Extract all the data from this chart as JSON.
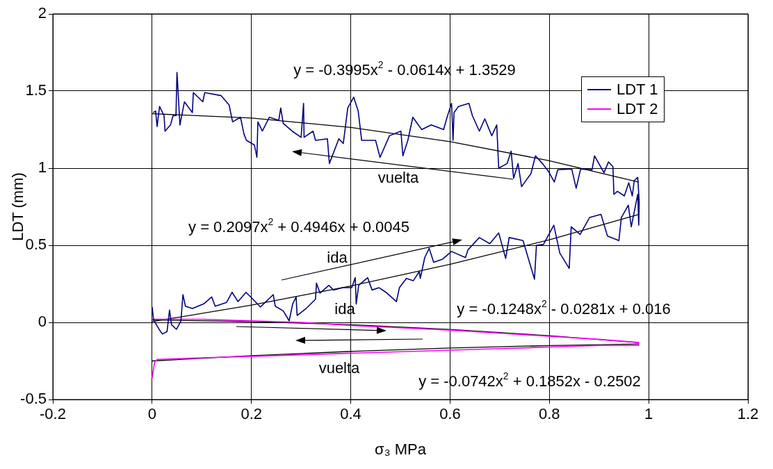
{
  "chart_data": {
    "type": "line",
    "xlabel": "σ₃ MPa",
    "ylabel": "LDT (mm)",
    "xlim": [
      -0.2,
      1.2
    ],
    "xticks": [
      -0.2,
      0,
      0.2,
      0.4,
      0.6,
      0.8,
      1,
      1.2
    ],
    "ylim": [
      -0.5,
      2
    ],
    "yticks": [
      -0.5,
      0,
      0.5,
      1,
      1.5,
      2
    ],
    "grid": true,
    "legend": "top right",
    "marker": "none",
    "line_style": "solid",
    "series": [
      {
        "name": "LDT 1",
        "color": "#000080",
        "x": [
          0,
          0.003,
          0.017,
          0.021,
          0.03,
          0.035,
          0.039,
          0.049,
          0.058,
          0.062,
          0.067,
          0.081,
          0.104,
          0.12,
          0.127,
          0.15,
          0.161,
          0.173,
          0.189,
          0.2,
          0.218,
          0.244,
          0.248,
          0.264,
          0.276,
          0.283,
          0.29,
          0.292,
          0.31,
          0.329,
          0.331,
          0.338,
          0.356,
          0.365,
          0.384,
          0.402,
          0.409,
          0.411,
          0.416,
          0.434,
          0.443,
          0.457,
          0.471,
          0.492,
          0.498,
          0.512,
          0.526,
          0.538,
          0.54,
          0.549,
          0.558,
          0.567,
          0.585,
          0.603,
          0.631,
          0.636,
          0.659,
          0.68,
          0.698,
          0.712,
          0.719,
          0.747,
          0.77,
          0.774,
          0.788,
          0.809,
          0.821,
          0.84,
          0.844,
          0.862,
          0.881,
          0.904,
          0.917,
          0.94,
          0.945,
          0.959,
          0.965,
          0.978,
          0.98,
          0.981,
          0.978,
          0.971,
          0.967,
          0.96,
          0.951,
          0.937,
          0.93,
          0.928,
          0.919,
          0.91,
          0.891,
          0.886,
          0.863,
          0.854,
          0.845,
          0.817,
          0.81,
          0.798,
          0.786,
          0.772,
          0.763,
          0.744,
          0.737,
          0.728,
          0.723,
          0.715,
          0.698,
          0.694,
          0.684,
          0.67,
          0.659,
          0.645,
          0.638,
          0.617,
          0.608,
          0.606,
          0.603,
          0.594,
          0.587,
          0.562,
          0.543,
          0.525,
          0.515,
          0.505,
          0.501,
          0.478,
          0.459,
          0.45,
          0.422,
          0.415,
          0.406,
          0.394,
          0.385,
          0.376,
          0.357,
          0.353,
          0.329,
          0.324,
          0.306,
          0.305,
          0.3,
          0.282,
          0.264,
          0.259,
          0.255,
          0.236,
          0.222,
          0.213,
          0.211,
          0.206,
          0.19,
          0.185,
          0.178,
          0.162,
          0.155,
          0.139,
          0.106,
          0.102,
          0.083,
          0.081,
          0.065,
          0.056,
          0.051,
          0.05,
          0.048,
          0.042,
          0.037,
          0.026,
          0.024,
          0.015,
          0.01,
          0.007,
          0.002
        ],
        "values": [
          0.1,
          0.015,
          -0.06,
          -0.075,
          -0.06,
          0.08,
          -0.015,
          -0.045,
          0.01,
          0.18,
          0.105,
          0.09,
          0.12,
          0.165,
          0.105,
          0.13,
          0.195,
          0.135,
          0.195,
          0.16,
          0.1,
          0.18,
          0.105,
          0.075,
          0.01,
          0.12,
          0.165,
          0.045,
          0.09,
          0.15,
          0.255,
          0.19,
          0.24,
          0.21,
          0.225,
          0.225,
          0.29,
          0.12,
          0.24,
          0.29,
          0.21,
          0.225,
          0.195,
          0.135,
          0.225,
          0.285,
          0.27,
          0.33,
          0.285,
          0.42,
          0.48,
          0.39,
          0.41,
          0.46,
          0.42,
          0.47,
          0.55,
          0.51,
          0.58,
          0.415,
          0.55,
          0.53,
          0.28,
          0.5,
          0.505,
          0.63,
          0.45,
          0.35,
          0.62,
          0.57,
          0.68,
          0.7,
          0.56,
          0.53,
          0.68,
          0.76,
          0.62,
          0.83,
          0.63,
          0.78,
          0.94,
          0.92,
          0.82,
          0.905,
          0.82,
          0.85,
          0.83,
          1.01,
          1.04,
          0.97,
          1.08,
          0.99,
          0.995,
          0.87,
          0.995,
          0.99,
          0.91,
          0.98,
          1.03,
          1.08,
          0.965,
          0.88,
          1.03,
          0.935,
          1.11,
          1.03,
          1,
          1.28,
          1.21,
          1.32,
          1.24,
          1.34,
          1.42,
          1.4,
          1.36,
          1.18,
          1.42,
          1.33,
          1.25,
          1.28,
          1.25,
          1.33,
          1.18,
          1.08,
          1.24,
          1.21,
          1.07,
          1.18,
          1.18,
          1.37,
          1.46,
          1.39,
          1.16,
          1.19,
          1.03,
          1.19,
          1.18,
          1.24,
          1.2,
          1.42,
          1.2,
          1.24,
          1.29,
          1.39,
          1.31,
          1.33,
          1.24,
          1.3,
          1.07,
          1.15,
          1.18,
          1.22,
          1.33,
          1.3,
          1.41,
          1.47,
          1.49,
          1.43,
          1.49,
          1.36,
          1.43,
          1.28,
          1.57,
          1.62,
          1.34,
          1.34,
          1.28,
          1.24,
          1.34,
          1.4,
          1.27,
          1.37,
          1.36
        ]
      },
      {
        "name": "LDT 2",
        "color": "#ff00ff",
        "x": [
          0,
          0.05,
          0.1,
          0.2,
          0.3,
          0.4,
          0.5,
          0.6,
          0.7,
          0.8,
          0.9,
          0.98,
          0.98,
          0.9,
          0.8,
          0.7,
          0.6,
          0.5,
          0.4,
          0.3,
          0.2,
          0.1,
          0.01,
          0.005,
          0
        ],
        "values": [
          0.02,
          0.02,
          0.02,
          0.01,
          0,
          -0.02,
          -0.035,
          -0.05,
          -0.07,
          -0.09,
          -0.11,
          -0.13,
          -0.15,
          -0.15,
          -0.16,
          -0.17,
          -0.18,
          -0.19,
          -0.2,
          -0.21,
          -0.22,
          -0.23,
          -0.24,
          -0.26,
          -0.36
        ]
      },
      {
        "type": "line",
        "color": "#000000",
        "x": [
          0,
          0.2,
          0.4,
          0.6,
          0.8,
          0.98
        ],
        "values": [
          1.353,
          1.325,
          1.264,
          1.172,
          1.048,
          0.909
        ]
      },
      {
        "type": "line",
        "color": "#000000",
        "x": [
          0,
          0.2,
          0.4,
          0.6,
          0.8,
          0.98
        ],
        "values": [
          0.005,
          0.112,
          0.236,
          0.377,
          0.535,
          0.7
        ]
      },
      {
        "type": "line",
        "color": "#000000",
        "x": [
          0,
          0.2,
          0.4,
          0.6,
          0.8,
          0.98
        ],
        "values": [
          0.016,
          0.005,
          -0.015,
          -0.046,
          -0.086,
          -0.131
        ]
      },
      {
        "type": "line",
        "color": "#000000",
        "x": [
          0,
          0.2,
          0.4,
          0.6,
          0.8,
          0.98
        ],
        "values": [
          -0.25,
          -0.216,
          -0.188,
          -0.166,
          -0.15,
          -0.14
        ]
      }
    ],
    "annotations": [
      "y = -0.3995x$^{2}$ - 0.0614x + 1.3529",
      "vuelta",
      "y = 0.2097x$^{2}$ + 0.4946x + 0.0045",
      "ida",
      "ida",
      "y = -0.1248x$^{2}$ - 0.0281x + 0.016",
      "vuelta",
      "y = -0.0742x$^{2}$ + 0.1852x - 0.2502"
    ]
  }
}
